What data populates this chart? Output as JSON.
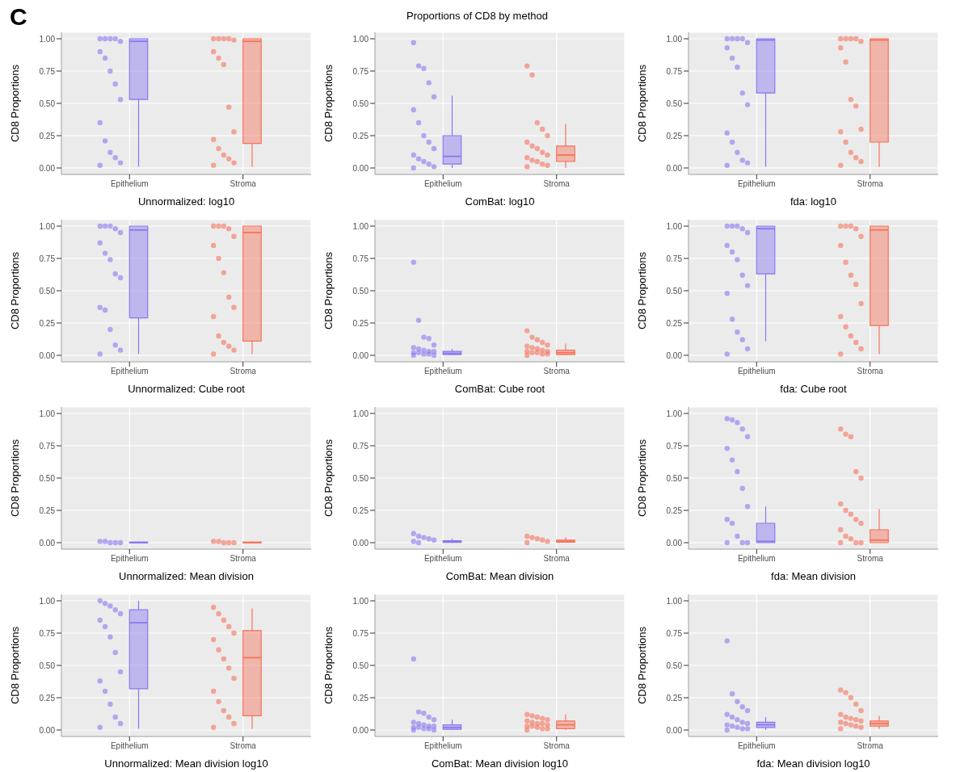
{
  "chart_data": [
    {
      "type": "box",
      "annotations": [
        "C"
      ],
      "xlabel": "Unnormalized: log10",
      "ylabel": "CD8 Proportions",
      "categories": [
        "Epithelium",
        "Stroma"
      ],
      "colors": [
        "#8878f0",
        "#f5735c"
      ],
      "grid": true,
      "ylim": [
        -0.05,
        1.05
      ],
      "yticks": [
        {
          "value": 0,
          "label": "0.00"
        },
        {
          "value": 0.25,
          "label": "0.25"
        },
        {
          "value": 0.5,
          "label": "0.50"
        },
        {
          "value": 0.75,
          "label": "0.75"
        },
        {
          "value": 1,
          "label": "1.00"
        }
      ],
      "boxes": [
        {
          "low": 0.01,
          "q1": 0.53,
          "median": 0.98,
          "q3": 1.0,
          "high": 1.0
        },
        {
          "low": 0.01,
          "q1": 0.19,
          "median": 0.98,
          "q3": 1.0,
          "high": 1.0
        }
      ],
      "series": [
        {
          "type": "scatter",
          "color": "#8878f0",
          "x": [
            "Epithelium",
            "Epithelium",
            "Epithelium",
            "Epithelium",
            "Epithelium",
            "Epithelium",
            "Epithelium",
            "Epithelium",
            "Epithelium",
            "Epithelium",
            "Epithelium",
            "Epithelium",
            "Epithelium",
            "Epithelium",
            "Epithelium",
            "Epithelium"
          ],
          "values": [
            1,
            1,
            1,
            1,
            0.98,
            0.9,
            0.85,
            0.75,
            0.65,
            0.53,
            0.35,
            0.21,
            0.12,
            0.08,
            0.04,
            0.02
          ]
        },
        {
          "type": "scatter",
          "color": "#f5735c",
          "x": [
            "Stroma",
            "Stroma",
            "Stroma",
            "Stroma",
            "Stroma",
            "Stroma",
            "Stroma",
            "Stroma",
            "Stroma",
            "Stroma",
            "Stroma",
            "Stroma",
            "Stroma",
            "Stroma",
            "Stroma",
            "Stroma"
          ],
          "values": [
            1,
            1,
            1,
            1,
            0.99,
            0.9,
            0.85,
            0.8,
            0.47,
            0.28,
            0.22,
            0.15,
            0.1,
            0.07,
            0.04,
            0.02
          ]
        }
      ]
    },
    {
      "type": "box",
      "title": "Proportions of CD8 by method",
      "xlabel": "ComBat: log10",
      "ylabel": "CD8 Proportions",
      "categories": [
        "Epithelium",
        "Stroma"
      ],
      "colors": [
        "#8878f0",
        "#f5735c"
      ],
      "grid": true,
      "ylim": [
        -0.05,
        1.05
      ],
      "yticks": [
        {
          "value": 0,
          "label": "0.00"
        },
        {
          "value": 0.25,
          "label": "0.25"
        },
        {
          "value": 0.5,
          "label": "0.50"
        },
        {
          "value": 0.75,
          "label": "0.75"
        },
        {
          "value": 1,
          "label": "1.00"
        }
      ],
      "boxes": [
        {
          "low": 0,
          "q1": 0.03,
          "median": 0.09,
          "q3": 0.25,
          "high": 0.56
        },
        {
          "low": 0,
          "q1": 0.05,
          "median": 0.1,
          "q3": 0.17,
          "high": 0.34
        }
      ],
      "series": [
        {
          "type": "scatter",
          "color": "#8878f0",
          "x": [
            "Epithelium",
            "Epithelium",
            "Epithelium",
            "Epithelium",
            "Epithelium",
            "Epithelium",
            "Epithelium",
            "Epithelium",
            "Epithelium",
            "Epithelium",
            "Epithelium",
            "Epithelium",
            "Epithelium",
            "Epithelium",
            "Epithelium",
            "Epithelium"
          ],
          "values": [
            0.97,
            0.79,
            0.77,
            0.66,
            0.55,
            0.45,
            0.35,
            0.25,
            0.2,
            0.15,
            0.1,
            0.07,
            0.05,
            0.03,
            0.01,
            0
          ]
        },
        {
          "type": "scatter",
          "color": "#f5735c",
          "x": [
            "Stroma",
            "Stroma",
            "Stroma",
            "Stroma",
            "Stroma",
            "Stroma",
            "Stroma",
            "Stroma",
            "Stroma",
            "Stroma",
            "Stroma",
            "Stroma",
            "Stroma",
            "Stroma",
            "Stroma",
            "Stroma"
          ],
          "values": [
            0.79,
            0.72,
            0.35,
            0.3,
            0.25,
            0.2,
            0.17,
            0.15,
            0.12,
            0.1,
            0.08,
            0.06,
            0.05,
            0.03,
            0.02,
            0.01
          ]
        }
      ]
    },
    {
      "type": "box",
      "xlabel": "fda: log10",
      "ylabel": "CD8 Proportions",
      "categories": [
        "Epithelium",
        "Stroma"
      ],
      "colors": [
        "#8878f0",
        "#f5735c"
      ],
      "grid": true,
      "ylim": [
        -0.05,
        1.05
      ],
      "yticks": [
        {
          "value": 0,
          "label": "0.00"
        },
        {
          "value": 0.25,
          "label": "0.25"
        },
        {
          "value": 0.5,
          "label": "0.50"
        },
        {
          "value": 0.75,
          "label": "0.75"
        },
        {
          "value": 1,
          "label": "1.00"
        }
      ],
      "boxes": [
        {
          "low": 0.01,
          "q1": 0.58,
          "median": 0.99,
          "q3": 1.0,
          "high": 1.0
        },
        {
          "low": 0.01,
          "q1": 0.2,
          "median": 0.99,
          "q3": 1.0,
          "high": 1.0
        }
      ],
      "series": [
        {
          "type": "scatter",
          "color": "#8878f0",
          "x": [
            "Epithelium",
            "Epithelium",
            "Epithelium",
            "Epithelium",
            "Epithelium",
            "Epithelium",
            "Epithelium",
            "Epithelium",
            "Epithelium",
            "Epithelium",
            "Epithelium",
            "Epithelium",
            "Epithelium",
            "Epithelium",
            "Epithelium",
            "Epithelium"
          ],
          "values": [
            1,
            1,
            1,
            1,
            0.97,
            0.93,
            0.85,
            0.78,
            0.58,
            0.49,
            0.27,
            0.2,
            0.12,
            0.06,
            0.04,
            0.02
          ]
        },
        {
          "type": "scatter",
          "color": "#f5735c",
          "x": [
            "Stroma",
            "Stroma",
            "Stroma",
            "Stroma",
            "Stroma",
            "Stroma",
            "Stroma",
            "Stroma",
            "Stroma",
            "Stroma",
            "Stroma",
            "Stroma",
            "Stroma",
            "Stroma",
            "Stroma",
            "Stroma"
          ],
          "values": [
            1,
            1,
            1,
            1,
            0.98,
            0.93,
            0.82,
            0.53,
            0.48,
            0.3,
            0.28,
            0.2,
            0.12,
            0.08,
            0.05,
            0.02
          ]
        }
      ]
    },
    {
      "type": "box",
      "xlabel": "Unnormalized: Cube root",
      "ylabel": "CD8 Proportions",
      "categories": [
        "Epithelium",
        "Stroma"
      ],
      "colors": [
        "#8878f0",
        "#f5735c"
      ],
      "grid": true,
      "ylim": [
        -0.05,
        1.05
      ],
      "yticks": [
        {
          "value": 0,
          "label": "0.00"
        },
        {
          "value": 0.25,
          "label": "0.25"
        },
        {
          "value": 0.5,
          "label": "0.50"
        },
        {
          "value": 0.75,
          "label": "0.75"
        },
        {
          "value": 1,
          "label": "1.00"
        }
      ],
      "boxes": [
        {
          "low": 0.01,
          "q1": 0.29,
          "median": 0.97,
          "q3": 1.0,
          "high": 1.0
        },
        {
          "low": 0.01,
          "q1": 0.11,
          "median": 0.95,
          "q3": 1.0,
          "high": 1.0
        }
      ],
      "series": [
        {
          "type": "scatter",
          "color": "#8878f0",
          "x": [
            "Epithelium",
            "Epithelium",
            "Epithelium",
            "Epithelium",
            "Epithelium",
            "Epithelium",
            "Epithelium",
            "Epithelium",
            "Epithelium",
            "Epithelium",
            "Epithelium",
            "Epithelium",
            "Epithelium",
            "Epithelium",
            "Epithelium",
            "Epithelium"
          ],
          "values": [
            1,
            1,
            1,
            0.98,
            0.95,
            0.87,
            0.79,
            0.74,
            0.63,
            0.6,
            0.37,
            0.35,
            0.2,
            0.08,
            0.04,
            0.01
          ]
        },
        {
          "type": "scatter",
          "color": "#f5735c",
          "x": [
            "Stroma",
            "Stroma",
            "Stroma",
            "Stroma",
            "Stroma",
            "Stroma",
            "Stroma",
            "Stroma",
            "Stroma",
            "Stroma",
            "Stroma",
            "Stroma",
            "Stroma",
            "Stroma",
            "Stroma",
            "Stroma"
          ],
          "values": [
            1,
            1,
            1,
            0.98,
            0.92,
            0.85,
            0.75,
            0.64,
            0.45,
            0.37,
            0.3,
            0.15,
            0.1,
            0.07,
            0.04,
            0.01
          ]
        }
      ]
    },
    {
      "type": "box",
      "xlabel": "ComBat: Cube root",
      "ylabel": "CD8 Proportions",
      "categories": [
        "Epithelium",
        "Stroma"
      ],
      "colors": [
        "#8878f0",
        "#f5735c"
      ],
      "grid": true,
      "ylim": [
        -0.05,
        1.05
      ],
      "yticks": [
        {
          "value": 0,
          "label": "0.00"
        },
        {
          "value": 0.25,
          "label": "0.25"
        },
        {
          "value": 0.5,
          "label": "0.50"
        },
        {
          "value": 0.75,
          "label": "0.75"
        },
        {
          "value": 1,
          "label": "1.00"
        }
      ],
      "boxes": [
        {
          "low": 0,
          "q1": 0.005,
          "median": 0.015,
          "q3": 0.03,
          "high": 0.05
        },
        {
          "low": 0,
          "q1": 0.005,
          "median": 0.02,
          "q3": 0.04,
          "high": 0.09
        }
      ],
      "series": [
        {
          "type": "scatter",
          "color": "#8878f0",
          "x": [
            "Epithelium",
            "Epithelium",
            "Epithelium",
            "Epithelium",
            "Epithelium",
            "Epithelium",
            "Epithelium",
            "Epithelium",
            "Epithelium",
            "Epithelium",
            "Epithelium",
            "Epithelium",
            "Epithelium",
            "Epithelium",
            "Epithelium",
            "Epithelium"
          ],
          "values": [
            0.72,
            0.27,
            0.14,
            0.13,
            0.08,
            0.06,
            0.05,
            0.04,
            0.03,
            0.03,
            0.02,
            0.02,
            0.01,
            0.01,
            0,
            0
          ]
        },
        {
          "type": "scatter",
          "color": "#f5735c",
          "x": [
            "Stroma",
            "Stroma",
            "Stroma",
            "Stroma",
            "Stroma",
            "Stroma",
            "Stroma",
            "Stroma",
            "Stroma",
            "Stroma",
            "Stroma",
            "Stroma",
            "Stroma",
            "Stroma",
            "Stroma",
            "Stroma"
          ],
          "values": [
            0.19,
            0.14,
            0.12,
            0.1,
            0.08,
            0.07,
            0.06,
            0.05,
            0.04,
            0.03,
            0.03,
            0.02,
            0.02,
            0.01,
            0.01,
            0
          ]
        }
      ]
    },
    {
      "type": "box",
      "xlabel": "fda: Cube root",
      "ylabel": "CD8 Proportions",
      "categories": [
        "Epithelium",
        "Stroma"
      ],
      "colors": [
        "#8878f0",
        "#f5735c"
      ],
      "grid": true,
      "ylim": [
        -0.05,
        1.05
      ],
      "yticks": [
        {
          "value": 0,
          "label": "0.00"
        },
        {
          "value": 0.25,
          "label": "0.25"
        },
        {
          "value": 0.5,
          "label": "0.50"
        },
        {
          "value": 0.75,
          "label": "0.75"
        },
        {
          "value": 1,
          "label": "1.00"
        }
      ],
      "boxes": [
        {
          "low": 0.11,
          "q1": 0.63,
          "median": 0.98,
          "q3": 1.0,
          "high": 1.0
        },
        {
          "low": 0.01,
          "q1": 0.23,
          "median": 0.97,
          "q3": 1.0,
          "high": 1.0
        }
      ],
      "series": [
        {
          "type": "scatter",
          "color": "#8878f0",
          "x": [
            "Epithelium",
            "Epithelium",
            "Epithelium",
            "Epithelium",
            "Epithelium",
            "Epithelium",
            "Epithelium",
            "Epithelium",
            "Epithelium",
            "Epithelium",
            "Epithelium",
            "Epithelium",
            "Epithelium",
            "Epithelium",
            "Epithelium",
            "Epithelium"
          ],
          "values": [
            1,
            1,
            1,
            0.98,
            0.95,
            0.85,
            0.8,
            0.74,
            0.62,
            0.54,
            0.48,
            0.28,
            0.18,
            0.12,
            0.05,
            0.01
          ]
        },
        {
          "type": "scatter",
          "color": "#f5735c",
          "x": [
            "Stroma",
            "Stroma",
            "Stroma",
            "Stroma",
            "Stroma",
            "Stroma",
            "Stroma",
            "Stroma",
            "Stroma",
            "Stroma",
            "Stroma",
            "Stroma",
            "Stroma",
            "Stroma",
            "Stroma",
            "Stroma"
          ],
          "values": [
            1,
            1,
            1,
            0.98,
            0.92,
            0.85,
            0.72,
            0.62,
            0.55,
            0.4,
            0.3,
            0.22,
            0.15,
            0.1,
            0.05,
            0.01
          ]
        }
      ]
    },
    {
      "type": "box",
      "xlabel": "Unnormalized: Mean division",
      "ylabel": "CD8 Proportions",
      "categories": [
        "Epithelium",
        "Stroma"
      ],
      "colors": [
        "#8878f0",
        "#f5735c"
      ],
      "grid": true,
      "ylim": [
        -0.05,
        1.05
      ],
      "yticks": [
        {
          "value": 0,
          "label": "0.00"
        },
        {
          "value": 0.25,
          "label": "0.25"
        },
        {
          "value": 0.5,
          "label": "0.50"
        },
        {
          "value": 0.75,
          "label": "0.75"
        },
        {
          "value": 1,
          "label": "1.00"
        }
      ],
      "boxes": [
        {
          "low": 0,
          "q1": 0,
          "median": 0,
          "q3": 0.005,
          "high": 0.01
        },
        {
          "low": 0,
          "q1": 0,
          "median": 0,
          "q3": 0.005,
          "high": 0.01
        }
      ],
      "series": [
        {
          "type": "scatter",
          "color": "#8878f0",
          "x": [
            "Epithelium",
            "Epithelium",
            "Epithelium",
            "Epithelium",
            "Epithelium"
          ],
          "values": [
            0.01,
            0.01,
            0,
            0,
            0
          ]
        },
        {
          "type": "scatter",
          "color": "#f5735c",
          "x": [
            "Stroma",
            "Stroma",
            "Stroma",
            "Stroma",
            "Stroma"
          ],
          "values": [
            0.01,
            0.01,
            0,
            0,
            0
          ]
        }
      ]
    },
    {
      "type": "box",
      "xlabel": "ComBat: Mean division",
      "ylabel": "CD8 Proportions",
      "categories": [
        "Epithelium",
        "Stroma"
      ],
      "colors": [
        "#8878f0",
        "#f5735c"
      ],
      "grid": true,
      "ylim": [
        -0.05,
        1.05
      ],
      "yticks": [
        {
          "value": 0,
          "label": "0.00"
        },
        {
          "value": 0.25,
          "label": "0.25"
        },
        {
          "value": 0.5,
          "label": "0.50"
        },
        {
          "value": 0.75,
          "label": "0.75"
        },
        {
          "value": 1,
          "label": "1.00"
        }
      ],
      "boxes": [
        {
          "low": 0,
          "q1": 0.002,
          "median": 0.008,
          "q3": 0.015,
          "high": 0.03
        },
        {
          "low": 0,
          "q1": 0.003,
          "median": 0.01,
          "q3": 0.02,
          "high": 0.04
        }
      ],
      "series": [
        {
          "type": "scatter",
          "color": "#8878f0",
          "x": [
            "Epithelium",
            "Epithelium",
            "Epithelium",
            "Epithelium",
            "Epithelium",
            "Epithelium",
            "Epithelium"
          ],
          "values": [
            0.07,
            0.05,
            0.04,
            0.03,
            0.02,
            0.01,
            0
          ]
        },
        {
          "type": "scatter",
          "color": "#f5735c",
          "x": [
            "Stroma",
            "Stroma",
            "Stroma",
            "Stroma",
            "Stroma",
            "Stroma"
          ],
          "values": [
            0.05,
            0.04,
            0.03,
            0.02,
            0.01,
            0
          ]
        }
      ]
    },
    {
      "type": "box",
      "xlabel": "fda: Mean division",
      "ylabel": "CD8 Proportions",
      "categories": [
        "Epithelium",
        "Stroma"
      ],
      "colors": [
        "#8878f0",
        "#f5735c"
      ],
      "grid": true,
      "ylim": [
        -0.05,
        1.05
      ],
      "yticks": [
        {
          "value": 0,
          "label": "0.00"
        },
        {
          "value": 0.25,
          "label": "0.25"
        },
        {
          "value": 0.5,
          "label": "0.50"
        },
        {
          "value": 0.75,
          "label": "0.75"
        },
        {
          "value": 1,
          "label": "1.00"
        }
      ],
      "boxes": [
        {
          "low": 0,
          "q1": 0,
          "median": 0.01,
          "q3": 0.15,
          "high": 0.28
        },
        {
          "low": 0,
          "q1": 0,
          "median": 0.02,
          "q3": 0.1,
          "high": 0.26
        }
      ],
      "series": [
        {
          "type": "scatter",
          "color": "#8878f0",
          "x": [
            "Epithelium",
            "Epithelium",
            "Epithelium",
            "Epithelium",
            "Epithelium",
            "Epithelium",
            "Epithelium",
            "Epithelium",
            "Epithelium",
            "Epithelium",
            "Epithelium",
            "Epithelium",
            "Epithelium",
            "Epithelium",
            "Epithelium",
            "Epithelium"
          ],
          "values": [
            0.96,
            0.95,
            0.93,
            0.88,
            0.82,
            0.73,
            0.64,
            0.55,
            0.42,
            0.28,
            0.18,
            0.15,
            0.05,
            0,
            0,
            0
          ]
        },
        {
          "type": "scatter",
          "color": "#f5735c",
          "x": [
            "Stroma",
            "Stroma",
            "Stroma",
            "Stroma",
            "Stroma",
            "Stroma",
            "Stroma",
            "Stroma",
            "Stroma",
            "Stroma",
            "Stroma",
            "Stroma",
            "Stroma",
            "Stroma",
            "Stroma",
            "Stroma"
          ],
          "values": [
            0.88,
            0.84,
            0.82,
            0.55,
            0.5,
            0.3,
            0.25,
            0.22,
            0.18,
            0.15,
            0.1,
            0.05,
            0.03,
            0,
            0,
            0
          ]
        }
      ]
    },
    {
      "type": "box",
      "xlabel": "Unnormalized: Mean division log10",
      "ylabel": "CD8 Proportions",
      "categories": [
        "Epithelium",
        "Stroma"
      ],
      "colors": [
        "#8878f0",
        "#f5735c"
      ],
      "grid": true,
      "ylim": [
        -0.05,
        1.05
      ],
      "yticks": [
        {
          "value": 0,
          "label": "0.00"
        },
        {
          "value": 0.25,
          "label": "0.25"
        },
        {
          "value": 0.5,
          "label": "0.50"
        },
        {
          "value": 0.75,
          "label": "0.75"
        },
        {
          "value": 1,
          "label": "1.00"
        }
      ],
      "boxes": [
        {
          "low": 0.01,
          "q1": 0.32,
          "median": 0.83,
          "q3": 0.93,
          "high": 1.0
        },
        {
          "low": 0.01,
          "q1": 0.11,
          "median": 0.56,
          "q3": 0.77,
          "high": 0.94
        }
      ],
      "series": [
        {
          "type": "scatter",
          "color": "#8878f0",
          "x": [
            "Epithelium",
            "Epithelium",
            "Epithelium",
            "Epithelium",
            "Epithelium",
            "Epithelium",
            "Epithelium",
            "Epithelium",
            "Epithelium",
            "Epithelium",
            "Epithelium",
            "Epithelium",
            "Epithelium",
            "Epithelium",
            "Epithelium",
            "Epithelium"
          ],
          "values": [
            1,
            0.98,
            0.96,
            0.93,
            0.9,
            0.85,
            0.8,
            0.72,
            0.6,
            0.45,
            0.38,
            0.3,
            0.2,
            0.1,
            0.05,
            0.02
          ]
        },
        {
          "type": "scatter",
          "color": "#f5735c",
          "x": [
            "Stroma",
            "Stroma",
            "Stroma",
            "Stroma",
            "Stroma",
            "Stroma",
            "Stroma",
            "Stroma",
            "Stroma",
            "Stroma",
            "Stroma",
            "Stroma",
            "Stroma",
            "Stroma",
            "Stroma",
            "Stroma"
          ],
          "values": [
            0.95,
            0.9,
            0.85,
            0.8,
            0.75,
            0.7,
            0.62,
            0.55,
            0.48,
            0.4,
            0.3,
            0.22,
            0.15,
            0.1,
            0.05,
            0.02
          ]
        }
      ]
    },
    {
      "type": "box",
      "xlabel": "ComBat: Mean division log10",
      "ylabel": "CD8 Proportions",
      "categories": [
        "Epithelium",
        "Stroma"
      ],
      "colors": [
        "#8878f0",
        "#f5735c"
      ],
      "grid": true,
      "ylim": [
        -0.05,
        1.05
      ],
      "yticks": [
        {
          "value": 0,
          "label": "0.00"
        },
        {
          "value": 0.25,
          "label": "0.25"
        },
        {
          "value": 0.5,
          "label": "0.50"
        },
        {
          "value": 0.75,
          "label": "0.75"
        },
        {
          "value": 1,
          "label": "1.00"
        }
      ],
      "boxes": [
        {
          "low": 0,
          "q1": 0.005,
          "median": 0.02,
          "q3": 0.04,
          "high": 0.08
        },
        {
          "low": 0,
          "q1": 0.01,
          "median": 0.04,
          "q3": 0.07,
          "high": 0.12
        }
      ],
      "series": [
        {
          "type": "scatter",
          "color": "#8878f0",
          "x": [
            "Epithelium",
            "Epithelium",
            "Epithelium",
            "Epithelium",
            "Epithelium",
            "Epithelium",
            "Epithelium",
            "Epithelium",
            "Epithelium",
            "Epithelium",
            "Epithelium",
            "Epithelium",
            "Epithelium",
            "Epithelium",
            "Epithelium",
            "Epithelium"
          ],
          "values": [
            0.55,
            0.14,
            0.13,
            0.1,
            0.08,
            0.06,
            0.05,
            0.04,
            0.03,
            0.03,
            0.02,
            0.02,
            0.01,
            0.01,
            0,
            0
          ]
        },
        {
          "type": "scatter",
          "color": "#f5735c",
          "x": [
            "Stroma",
            "Stroma",
            "Stroma",
            "Stroma",
            "Stroma",
            "Stroma",
            "Stroma",
            "Stroma",
            "Stroma",
            "Stroma",
            "Stroma",
            "Stroma",
            "Stroma",
            "Stroma",
            "Stroma",
            "Stroma"
          ],
          "values": [
            0.12,
            0.11,
            0.1,
            0.09,
            0.08,
            0.07,
            0.06,
            0.05,
            0.05,
            0.04,
            0.03,
            0.03,
            0.02,
            0.01,
            0.01,
            0
          ]
        }
      ]
    },
    {
      "type": "box",
      "xlabel": "fda: Mean division log10",
      "ylabel": "CD8 Proportions",
      "categories": [
        "Epithelium",
        "Stroma"
      ],
      "colors": [
        "#8878f0",
        "#f5735c"
      ],
      "grid": true,
      "ylim": [
        -0.05,
        1.05
      ],
      "yticks": [
        {
          "value": 0,
          "label": "0.00"
        },
        {
          "value": 0.25,
          "label": "0.25"
        },
        {
          "value": 0.5,
          "label": "0.50"
        },
        {
          "value": 0.75,
          "label": "0.75"
        },
        {
          "value": 1,
          "label": "1.00"
        }
      ],
      "boxes": [
        {
          "low": 0,
          "q1": 0.02,
          "median": 0.04,
          "q3": 0.06,
          "high": 0.1
        },
        {
          "low": 0.01,
          "q1": 0.03,
          "median": 0.05,
          "q3": 0.07,
          "high": 0.11
        }
      ],
      "series": [
        {
          "type": "scatter",
          "color": "#8878f0",
          "x": [
            "Epithelium",
            "Epithelium",
            "Epithelium",
            "Epithelium",
            "Epithelium",
            "Epithelium",
            "Epithelium",
            "Epithelium",
            "Epithelium",
            "Epithelium",
            "Epithelium",
            "Epithelium",
            "Epithelium",
            "Epithelium",
            "Epithelium",
            "Epithelium"
          ],
          "values": [
            0.69,
            0.28,
            0.22,
            0.18,
            0.15,
            0.12,
            0.1,
            0.08,
            0.06,
            0.05,
            0.04,
            0.03,
            0.02,
            0.01,
            0.01,
            0
          ]
        },
        {
          "type": "scatter",
          "color": "#f5735c",
          "x": [
            "Stroma",
            "Stroma",
            "Stroma",
            "Stroma",
            "Stroma",
            "Stroma",
            "Stroma",
            "Stroma",
            "Stroma",
            "Stroma",
            "Stroma",
            "Stroma",
            "Stroma",
            "Stroma",
            "Stroma",
            "Stroma"
          ],
          "values": [
            0.31,
            0.29,
            0.25,
            0.2,
            0.15,
            0.12,
            0.1,
            0.09,
            0.08,
            0.07,
            0.06,
            0.05,
            0.04,
            0.03,
            0.02,
            0.01
          ]
        }
      ]
    }
  ]
}
